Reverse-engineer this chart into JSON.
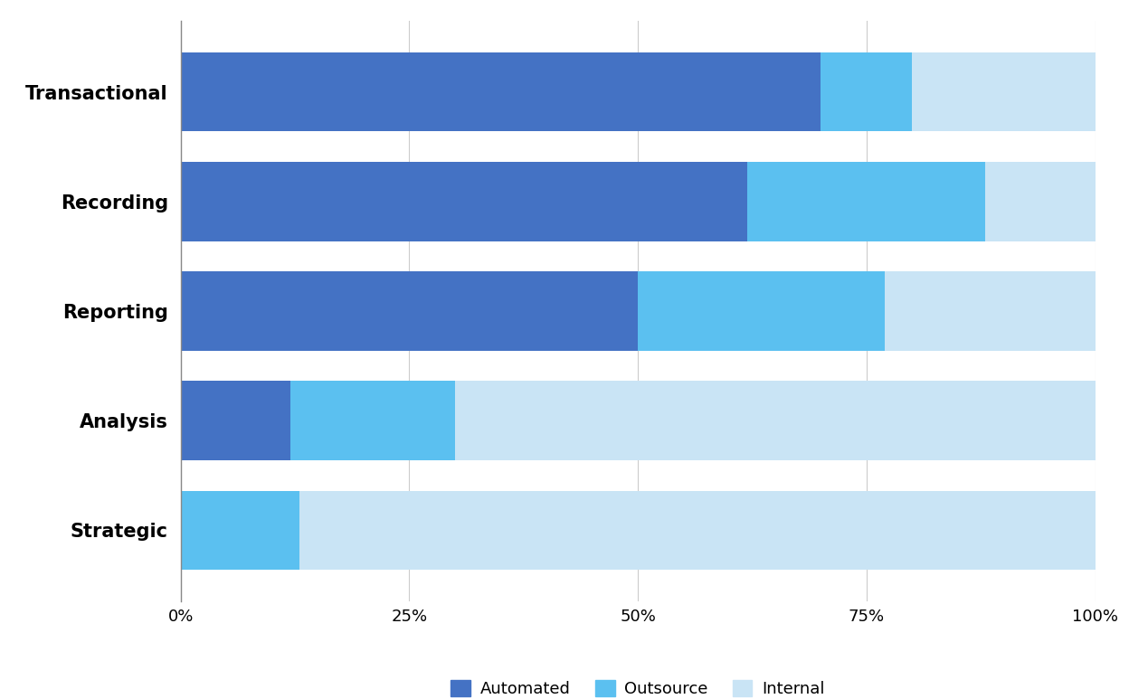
{
  "categories": [
    "Transactional",
    "Recording",
    "Reporting",
    "Analysis",
    "Strategic"
  ],
  "automated": [
    70,
    62,
    50,
    12,
    0
  ],
  "outsource": [
    10,
    26,
    27,
    18,
    13
  ],
  "internal": [
    20,
    12,
    23,
    70,
    87
  ],
  "colors": {
    "automated": "#4472C4",
    "outsource": "#5BC0F0",
    "internal": "#C9E4F5"
  },
  "xlabel_ticks": [
    "0%",
    "25%",
    "50%",
    "75%",
    "100%"
  ],
  "xlabel_values": [
    0,
    25,
    50,
    75,
    100
  ],
  "legend_labels": [
    "Automated",
    "Outsource",
    "Internal"
  ],
  "background_color": "#FFFFFF",
  "bar_height": 0.72,
  "label_fontsize": 15,
  "tick_fontsize": 13,
  "legend_fontsize": 13
}
